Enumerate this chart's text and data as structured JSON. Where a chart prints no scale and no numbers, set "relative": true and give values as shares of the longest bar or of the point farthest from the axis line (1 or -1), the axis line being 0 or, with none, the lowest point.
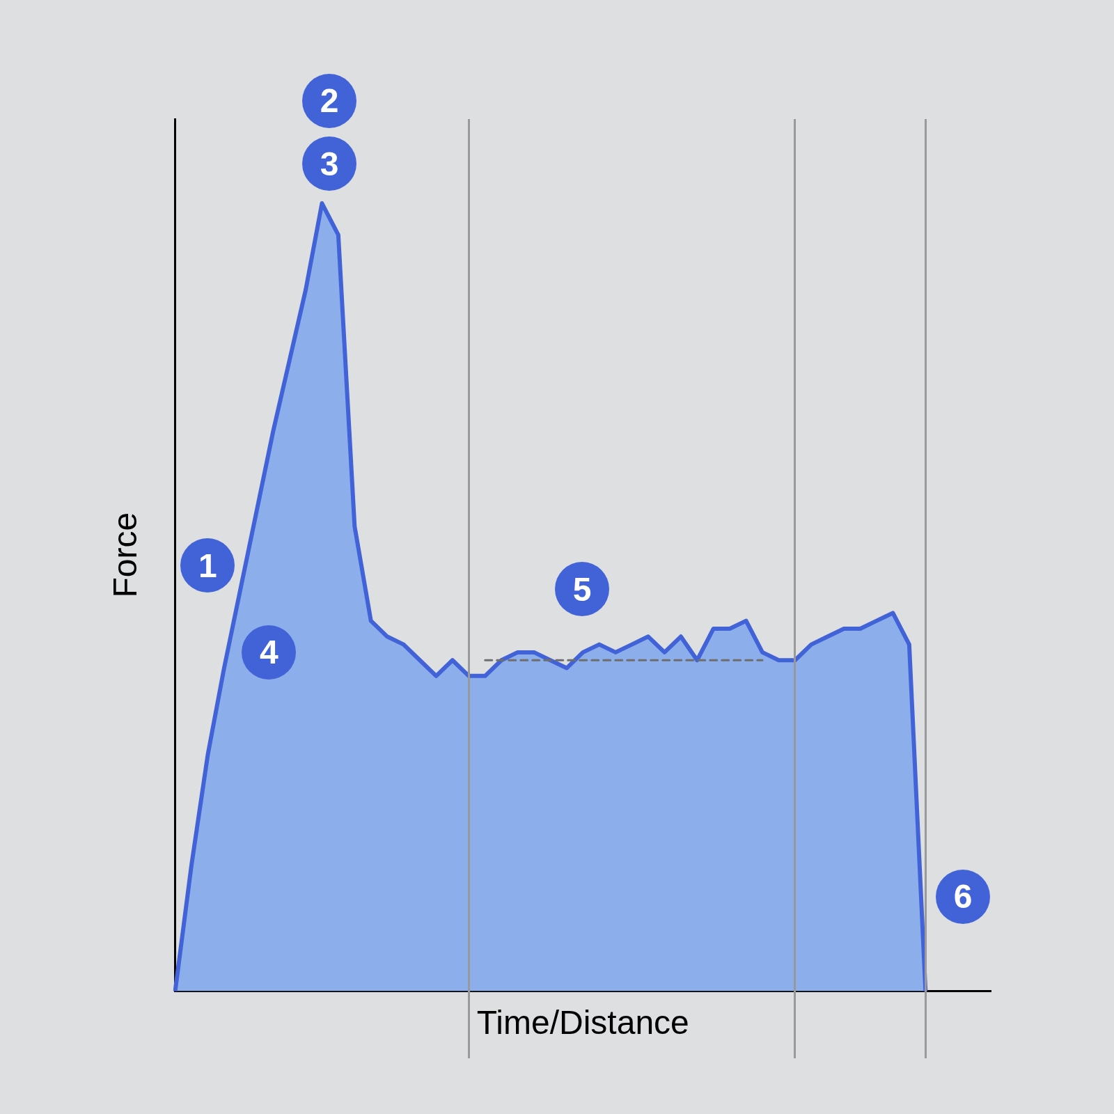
{
  "chart_data": {
    "type": "area",
    "relative": true,
    "xlabel": "Time/Distance",
    "ylabel": "Force",
    "grid": false,
    "legend": false,
    "marker": "none",
    "categories": [
      null,
      null,
      null,
      null,
      null,
      null,
      null,
      null,
      null,
      null,
      null,
      null,
      null,
      null,
      null,
      null,
      null,
      null,
      null,
      null,
      null,
      null,
      null,
      null,
      null,
      null,
      null,
      null,
      null,
      null,
      null,
      null,
      null,
      null,
      null,
      null,
      null,
      null,
      null,
      null,
      null,
      null,
      null,
      null,
      null,
      null,
      null,
      null,
      null,
      null,
      null
    ],
    "series": [
      {
        "color": "#4263d8",
        "values": [
          0,
          0.16,
          0.3,
          0.41,
          0.51,
          0.61,
          0.71,
          0.8,
          0.89,
          1,
          0.96,
          0.59,
          0.47,
          0.45,
          0.44,
          0.42,
          0.4,
          0.42,
          0.4,
          0.4,
          0.42,
          0.43,
          0.43,
          0.42,
          0.41,
          0.43,
          0.44,
          0.43,
          0.44,
          0.45,
          0.43,
          0.45,
          0.42,
          0.46,
          0.46,
          0.47,
          0.43,
          0.42,
          0.42,
          0.44,
          0.45,
          0.46,
          0.46,
          0.47,
          0.48,
          0.44,
          0,
          null,
          null,
          null,
          null
        ]
      },
      {
        "type": "line",
        "color": "#6e6e6e",
        "line_style": "dashed",
        "values": [
          null,
          null,
          null,
          null,
          null,
          null,
          null,
          null,
          null,
          null,
          null,
          null,
          null,
          null,
          null,
          null,
          null,
          null,
          null,
          0.42,
          0.42,
          0.42,
          0.42,
          0.42,
          0.42,
          0.42,
          0.42,
          0.42,
          0.42,
          0.42,
          0.42,
          0.42,
          0.42,
          0.42,
          0.42,
          0.42,
          0.42,
          null,
          null,
          null,
          null,
          null,
          null,
          null,
          null,
          null,
          null,
          null,
          null,
          null,
          null
        ]
      }
    ],
    "annotations": [
      "1",
      "2",
      "3",
      "4",
      "5",
      "6"
    ]
  }
}
